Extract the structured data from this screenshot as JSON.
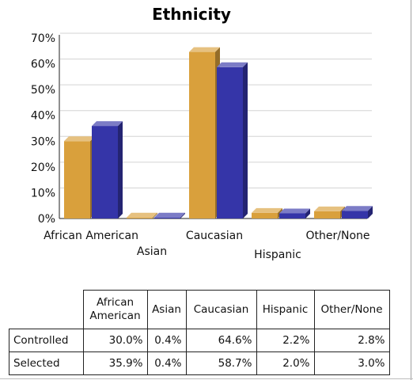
{
  "chart_data": {
    "type": "bar",
    "title": "Ethnicity",
    "categories": [
      "African American",
      "Asian",
      "Caucasian",
      "Hispanic",
      "Other/None"
    ],
    "series": [
      {
        "name": "Controlled",
        "values": [
          30.0,
          0.4,
          64.6,
          2.2,
          2.8
        ],
        "color": "#d9a03c"
      },
      {
        "name": "Selected",
        "values": [
          35.9,
          0.4,
          58.7,
          2.0,
          3.0
        ],
        "color": "#3535a8"
      }
    ],
    "y_ticks": [
      "0%",
      "10%",
      "20%",
      "30%",
      "40%",
      "50%",
      "60%",
      "70%"
    ],
    "ylim": [
      0,
      70
    ],
    "grid": true,
    "three_d": true
  },
  "table": {
    "headers": [
      "African American",
      "Asian",
      "Caucasian",
      "Hispanic",
      "Other/None"
    ],
    "rows": [
      {
        "label": "Controlled",
        "cells": [
          "30.0%",
          "0.4%",
          "64.6%",
          "2.2%",
          "2.8%"
        ]
      },
      {
        "label": "Selected",
        "cells": [
          "35.9%",
          "0.4%",
          "58.7%",
          "2.0%",
          "3.0%"
        ]
      }
    ]
  }
}
